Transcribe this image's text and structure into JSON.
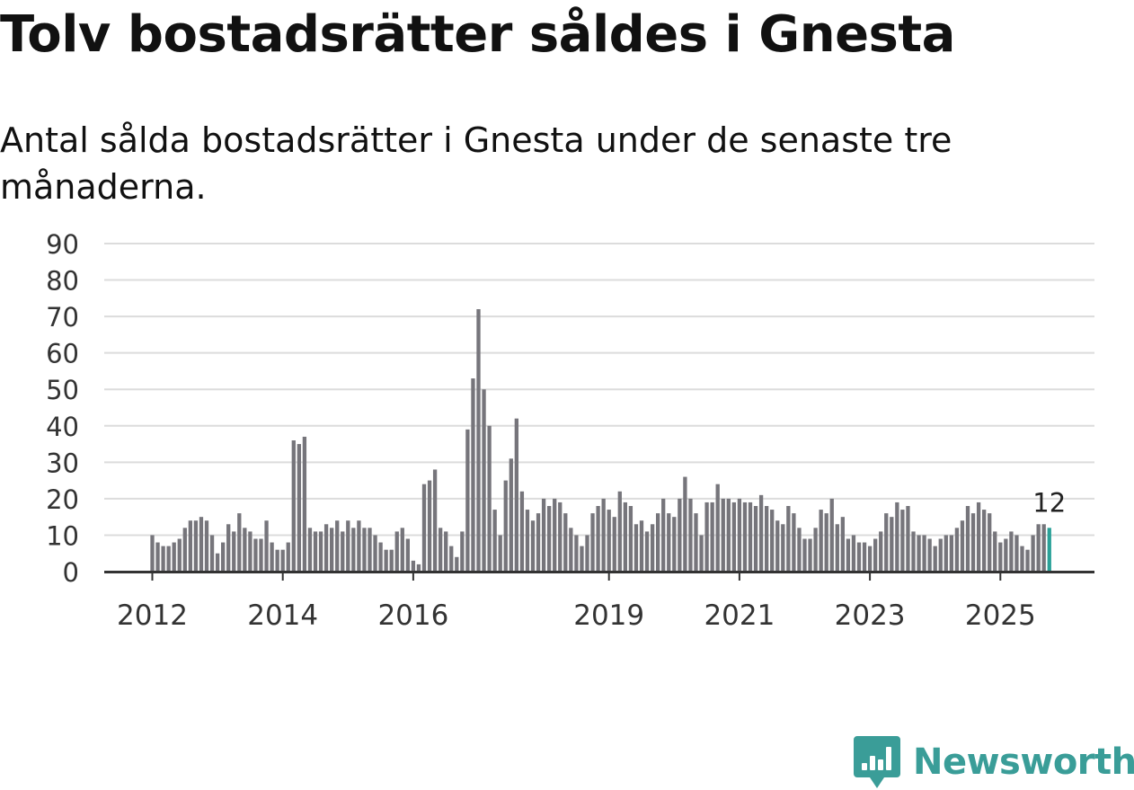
{
  "header": {
    "title": "Tolv bostadsrätter såldes i Gnesta",
    "subtitle": "Antal sålda bostadsrätter i Gnesta under de senaste tre månaderna."
  },
  "brand": {
    "name": "Newsworthy",
    "color": "#3a9d98"
  },
  "colors": {
    "bar": "#76757b",
    "highlight": "#2aa198",
    "grid": "#dcdcdc",
    "axis": "#333333"
  },
  "chart_data": {
    "type": "bar",
    "title": "Tolv bostadsrätter såldes i Gnesta",
    "subtitle": "Antal sålda bostadsrätter i Gnesta under de senaste tre månaderna.",
    "xlabel": "",
    "ylabel": "",
    "ylim": [
      0,
      90
    ],
    "yticks": [
      0,
      10,
      20,
      30,
      40,
      50,
      60,
      70,
      80,
      90
    ],
    "grid": true,
    "start": {
      "year": 2012,
      "month": 1
    },
    "xticks": [
      {
        "label": "2012",
        "year": 2012,
        "month": 1
      },
      {
        "label": "2014",
        "year": 2014,
        "month": 1
      },
      {
        "label": "2016",
        "year": 2016,
        "month": 1
      },
      {
        "label": "2019",
        "year": 2019,
        "month": 1
      },
      {
        "label": "2021",
        "year": 2021,
        "month": 1
      },
      {
        "label": "2023",
        "year": 2023,
        "month": 1
      },
      {
        "label": "2025",
        "year": 2025,
        "month": 1
      }
    ],
    "annotation": {
      "label": "12",
      "value": 12,
      "target": "last"
    },
    "values": [
      10,
      8,
      7,
      7,
      8,
      9,
      12,
      14,
      14,
      15,
      14,
      10,
      5,
      8,
      13,
      11,
      16,
      12,
      11,
      9,
      9,
      14,
      8,
      6,
      6,
      8,
      36,
      35,
      37,
      12,
      11,
      11,
      13,
      12,
      14,
      11,
      14,
      12,
      14,
      12,
      12,
      10,
      8,
      6,
      6,
      11,
      12,
      9,
      3,
      2,
      24,
      25,
      28,
      12,
      11,
      7,
      4,
      11,
      39,
      53,
      72,
      50,
      40,
      17,
      10,
      25,
      31,
      42,
      22,
      17,
      14,
      16,
      20,
      18,
      20,
      19,
      16,
      12,
      10,
      7,
      10,
      16,
      18,
      20,
      17,
      15,
      22,
      19,
      18,
      13,
      14,
      11,
      13,
      16,
      20,
      16,
      15,
      20,
      26,
      20,
      16,
      10,
      19,
      19,
      24,
      20,
      20,
      19,
      20,
      19,
      19,
      18,
      21,
      18,
      17,
      14,
      13,
      18,
      16,
      12,
      9,
      9,
      12,
      17,
      16,
      20,
      13,
      15,
      9,
      10,
      8,
      8,
      7,
      9,
      11,
      16,
      15,
      19,
      17,
      18,
      11,
      10,
      10,
      9,
      7,
      9,
      10,
      10,
      12,
      14,
      18,
      16,
      19,
      17,
      16,
      11,
      8,
      9,
      11,
      10,
      7,
      6,
      10,
      13,
      13,
      12
    ]
  }
}
